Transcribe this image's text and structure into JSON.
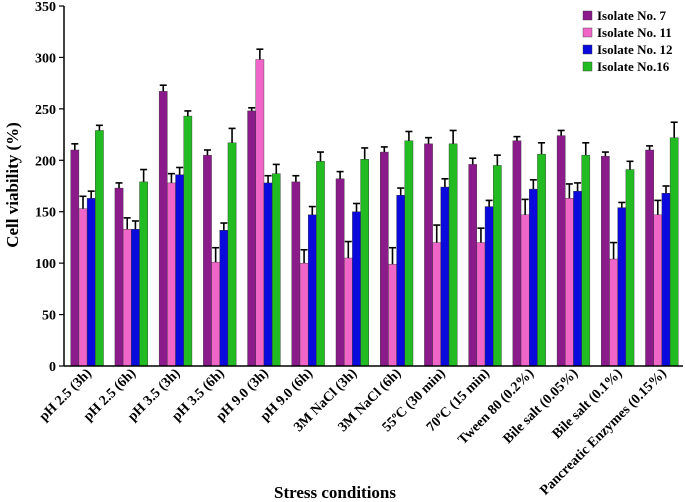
{
  "chart_data": {
    "type": "bar",
    "title": "",
    "xlabel": "Stress conditions",
    "ylabel": "Cell viability (%)",
    "ylim": [
      0,
      350
    ],
    "yticks": [
      0,
      50,
      100,
      150,
      200,
      250,
      300,
      350
    ],
    "legend_position": "top-right",
    "categories": [
      "pH 2.5 (3h)",
      "pH 2.5 (6h)",
      "pH 3.5 (3h)",
      "pH 3.5 (6h)",
      "pH 9.0 (3h)",
      "pH 9.0 (6h)",
      "3M NaCl (3h)",
      "3M NaCl (6h)",
      "55ºC (30 min)",
      "70ºC (15 min)",
      "Tween 80 (0.2%)",
      "Bile salt (0.05%)",
      "Bile salt (0.1%)",
      "Pancreatic Enzymes (0.15%)"
    ],
    "series": [
      {
        "name": "Isolate No. 7",
        "color": "#8b1a8b",
        "values": [
          210,
          173,
          267,
          205,
          248,
          179,
          182,
          208,
          216,
          196,
          219,
          224,
          204,
          210
        ],
        "errors": [
          6,
          5,
          6,
          5,
          3,
          6,
          7,
          5,
          6,
          6,
          4,
          5,
          4,
          4
        ]
      },
      {
        "name": "Isolate No. 11",
        "color": "#f066c8",
        "values": [
          153,
          133,
          178,
          101,
          298,
          100,
          105,
          99,
          120,
          120,
          147,
          163,
          104,
          147
        ],
        "errors": [
          12,
          11,
          9,
          14,
          10,
          13,
          16,
          16,
          17,
          14,
          15,
          14,
          16,
          14
        ]
      },
      {
        "name": "Isolate No. 12",
        "color": "#0a0adc",
        "values": [
          163,
          133,
          186,
          132,
          178,
          147,
          150,
          166,
          174,
          155,
          172,
          170,
          154,
          168
        ],
        "errors": [
          7,
          8,
          7,
          7,
          7,
          8,
          8,
          7,
          8,
          6,
          9,
          8,
          5,
          7
        ]
      },
      {
        "name": "Isolate No.16",
        "color": "#22bb22",
        "values": [
          229,
          179,
          243,
          217,
          187,
          199,
          201,
          219,
          216,
          195,
          206,
          205,
          191,
          222
        ],
        "errors": [
          5,
          12,
          5,
          14,
          9,
          9,
          11,
          9,
          13,
          10,
          11,
          12,
          8,
          15
        ]
      }
    ]
  }
}
